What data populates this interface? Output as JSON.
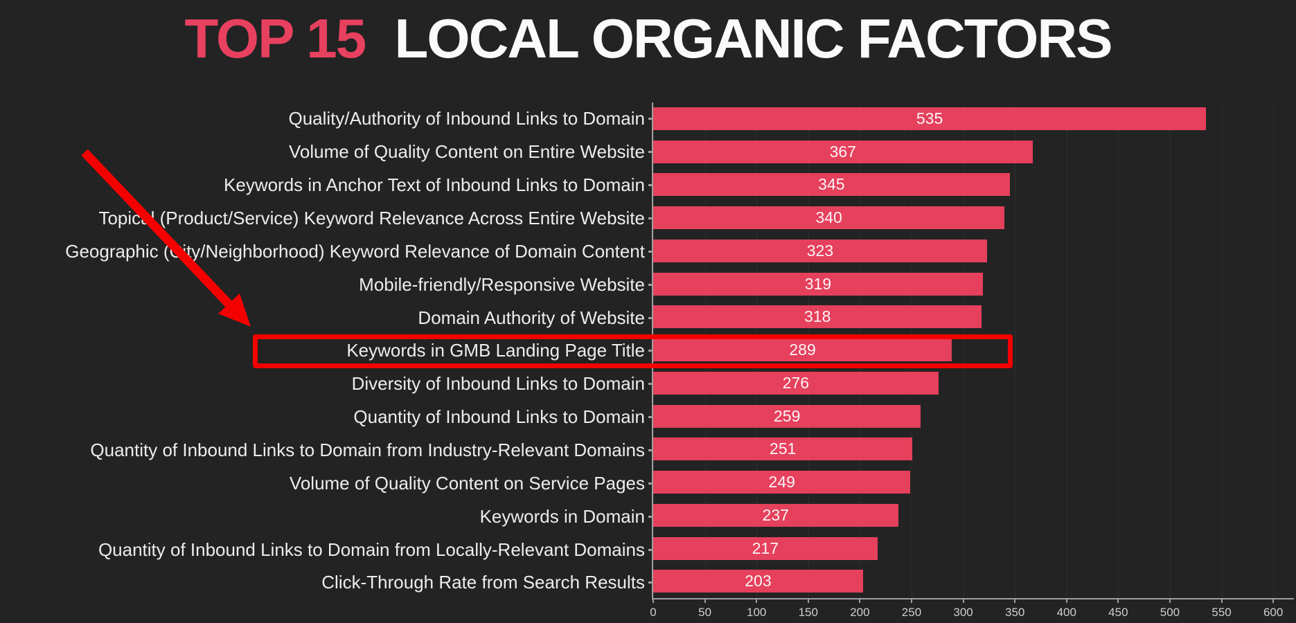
{
  "title": {
    "highlight": "TOP 15",
    "rest": "LOCAL ORGANIC FACTORS"
  },
  "chart_data": {
    "type": "bar",
    "orientation": "horizontal",
    "title": "TOP 15 LOCAL ORGANIC FACTORS",
    "categories": [
      "Quality/Authority of Inbound Links to Domain",
      "Volume of Quality Content on Entire Website",
      "Keywords in Anchor Text of Inbound Links to Domain",
      "Topical (Product/Service) Keyword Relevance Across Entire Website",
      "Geographic (City/Neighborhood) Keyword Relevance of Domain Content",
      "Mobile-friendly/Responsive Website",
      "Domain Authority of Website",
      "Keywords in GMB Landing Page Title",
      "Diversity of Inbound Links to Domain",
      "Quantity of Inbound Links to Domain",
      "Quantity of Inbound Links to Domain from Industry-Relevant Domains",
      "Volume of Quality Content on Service Pages",
      "Keywords in Domain",
      "Quantity of Inbound Links to Domain from Locally-Relevant Domains",
      "Click-Through Rate from Search Results"
    ],
    "values": [
      535,
      367,
      345,
      340,
      323,
      319,
      318,
      289,
      276,
      259,
      251,
      249,
      237,
      217,
      203
    ],
    "xlabel": "",
    "ylabel": "",
    "xlim": [
      0,
      600
    ],
    "x_ticks": [
      0,
      50,
      100,
      150,
      200,
      250,
      300,
      350,
      400,
      450,
      500,
      550,
      600
    ],
    "grid": "faint vertical gridlines at 50-unit intervals",
    "legend_position": "none",
    "bar_color": "#e5405c",
    "value_label_color": "#ffffff",
    "axis_color": "#9f9f9f"
  },
  "annotations": {
    "highlighted_category": "Keywords in GMB Landing Page Title",
    "highlighted_value": 289,
    "highlight_box_color": "#f40000",
    "arrow_color": "#f40000"
  },
  "colors": {
    "background": "#232323",
    "title_highlight": "#e8415f",
    "title_text": "#fafafa",
    "label_text": "#ededed"
  }
}
